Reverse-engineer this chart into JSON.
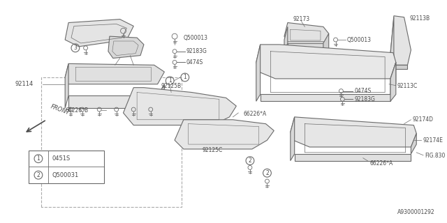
{
  "bg_color": "#ffffff",
  "line_color": "#6a6a6a",
  "text_color": "#4a4a4a",
  "fig_width": 6.4,
  "fig_height": 3.2,
  "dpi": 100,
  "catalog_number": "A9300001292",
  "legend_items": [
    {
      "symbol": "1",
      "text": "0451S"
    },
    {
      "symbol": "2",
      "text": "Q500031"
    }
  ]
}
